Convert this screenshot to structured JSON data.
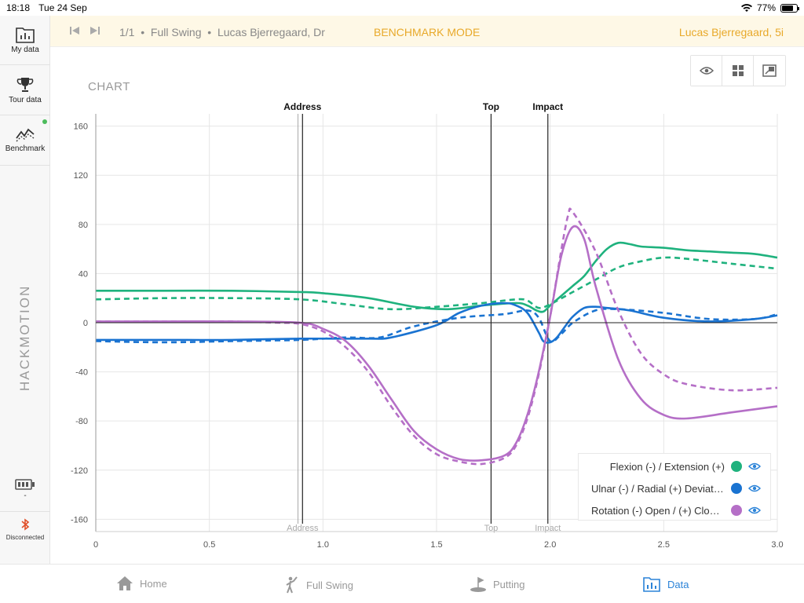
{
  "status": {
    "time": "18:18",
    "date": "Tue 24 Sep",
    "battery": "77%",
    "battery_level": 0.77
  },
  "sidebar": {
    "items": [
      {
        "label": "My data",
        "icon": "folder-chart-icon"
      },
      {
        "label": "Tour data",
        "icon": "trophy-icon"
      },
      {
        "label": "Benchmark",
        "icon": "benchmark-chart-icon"
      }
    ],
    "brand": "HACKMOTION",
    "battery_text": "-",
    "bluetooth_label": "Disconnected"
  },
  "topbar": {
    "counter": "1/1",
    "crumb": "1/1  •  Full Swing  •  Lucas Bjerregaard, Dr",
    "mode": "BENCHMARK MODE",
    "player": "Lucas Bjerregaard, 5i"
  },
  "chart_title": "CHART",
  "colors": {
    "flexion": "#1fb27e",
    "ulnar": "#1a73d1",
    "rotation": "#b56fc7",
    "accent": "#e8a92a",
    "active_tab": "#2b83d8"
  },
  "chart_data": {
    "type": "line",
    "xlim": [
      0,
      3.0
    ],
    "ylim": [
      -170,
      170
    ],
    "x_ticks": [
      0,
      0.5,
      1.0,
      1.5,
      2.0,
      2.5,
      3.0
    ],
    "x_tick_labels": [
      "0",
      "0.5",
      "1.0",
      "1.5",
      "2.0",
      "2.5",
      "3.0"
    ],
    "y_ticks": [
      160,
      120,
      80,
      40,
      0,
      -40,
      -80,
      -120,
      -160
    ],
    "grid": true,
    "legend_position": "bottom-right",
    "markers": [
      {
        "label": "Address",
        "x": 0.91,
        "bench_x": 0.89
      },
      {
        "label": "Top",
        "x": 1.74
      },
      {
        "label": "Impact",
        "x": 1.99
      }
    ],
    "series": [
      {
        "name": "Flexion (-) / Extension (+)",
        "color": "#1fb27e",
        "style": "solid",
        "x": [
          0,
          0.3,
          0.6,
          0.9,
          1.0,
          1.2,
          1.4,
          1.55,
          1.7,
          1.85,
          1.9,
          1.94,
          1.97,
          2.0,
          2.05,
          2.1,
          2.15,
          2.2,
          2.25,
          2.3,
          2.35,
          2.4,
          2.5,
          2.6,
          2.7,
          2.8,
          2.9,
          3.0
        ],
        "y": [
          26,
          26,
          26,
          25,
          24,
          20,
          13,
          11,
          14,
          16,
          14,
          10,
          9,
          14,
          22,
          30,
          38,
          50,
          60,
          65,
          64,
          62,
          61,
          59,
          58,
          57,
          56,
          53
        ]
      },
      {
        "name": "Flexion benchmark",
        "color": "#1fb27e",
        "style": "dashed",
        "x": [
          0,
          0.3,
          0.6,
          0.9,
          1.1,
          1.3,
          1.5,
          1.7,
          1.85,
          1.9,
          1.95,
          2.0,
          2.1,
          2.2,
          2.3,
          2.4,
          2.5,
          2.6,
          2.8,
          3.0
        ],
        "y": [
          19,
          20,
          20,
          19,
          15,
          11,
          13,
          16,
          19,
          18,
          12,
          15,
          25,
          35,
          45,
          50,
          53,
          52,
          48,
          44
        ]
      },
      {
        "name": "Ulnar (-) / Radial (+) Deviation",
        "color": "#1a73d1",
        "style": "solid",
        "x": [
          0,
          0.3,
          0.6,
          0.9,
          1.2,
          1.3,
          1.5,
          1.6,
          1.7,
          1.8,
          1.85,
          1.9,
          1.95,
          1.97,
          2.0,
          2.03,
          2.07,
          2.1,
          2.15,
          2.2,
          2.25,
          2.35,
          2.5,
          2.7,
          2.9,
          3.0
        ],
        "y": [
          -14,
          -14,
          -14,
          -13,
          -13,
          -12,
          -2,
          8,
          14,
          16,
          14,
          8,
          -8,
          -15,
          -16,
          -12,
          -2,
          5,
          12,
          13,
          12,
          10,
          4,
          1,
          3,
          6
        ]
      },
      {
        "name": "Ulnar benchmark",
        "color": "#1a73d1",
        "style": "dashed",
        "x": [
          0,
          0.3,
          0.6,
          0.9,
          1.1,
          1.25,
          1.4,
          1.6,
          1.8,
          1.9,
          1.95,
          2.0,
          2.05,
          2.1,
          2.2,
          2.3,
          2.5,
          2.7,
          2.9,
          3.0
        ],
        "y": [
          -15,
          -16,
          -15,
          -14,
          -12,
          -12,
          -3,
          4,
          7,
          10,
          4,
          -15,
          -9,
          0,
          10,
          11,
          8,
          3,
          3,
          7
        ]
      },
      {
        "name": "Rotation (-) Open / (+) Closed",
        "color": "#b56fc7",
        "style": "solid",
        "x": [
          0,
          0.3,
          0.6,
          0.9,
          1.0,
          1.1,
          1.2,
          1.3,
          1.4,
          1.5,
          1.6,
          1.7,
          1.8,
          1.85,
          1.9,
          1.95,
          2.0,
          2.05,
          2.1,
          2.15,
          2.2,
          2.3,
          2.4,
          2.5,
          2.6,
          2.8,
          3.0
        ],
        "y": [
          1,
          1,
          1,
          0,
          -5,
          -15,
          -35,
          -62,
          -88,
          -103,
          -111,
          -112,
          -108,
          -98,
          -75,
          -40,
          5,
          55,
          78,
          68,
          30,
          -30,
          -62,
          -75,
          -78,
          -73,
          -68
        ]
      },
      {
        "name": "Rotation benchmark",
        "color": "#b56fc7",
        "style": "dashed",
        "x": [
          0,
          0.3,
          0.6,
          0.8,
          0.9,
          1.0,
          1.1,
          1.2,
          1.3,
          1.4,
          1.5,
          1.6,
          1.7,
          1.8,
          1.85,
          1.9,
          1.95,
          2.0,
          2.05,
          2.08,
          2.1,
          2.2,
          2.3,
          2.4,
          2.5,
          2.6,
          2.8,
          3.0
        ],
        "y": [
          1,
          1,
          1,
          0,
          -1,
          -7,
          -20,
          -40,
          -68,
          -92,
          -107,
          -113,
          -115,
          -110,
          -100,
          -78,
          -42,
          5,
          60,
          88,
          90,
          58,
          10,
          -25,
          -42,
          -50,
          -55,
          -53
        ]
      }
    ]
  },
  "legend": [
    {
      "label": "Flexion (-) / Extension (+)",
      "color": "#1fb27e"
    },
    {
      "label": "Ulnar (-) / Radial (+) Deviation",
      "color": "#1a73d1"
    },
    {
      "label": "Rotation (-) Open / (+) Closed",
      "color": "#b56fc7"
    }
  ],
  "tabs": [
    {
      "label": "Home",
      "icon": "home-icon"
    },
    {
      "label": "Full Swing",
      "icon": "golfer-icon"
    },
    {
      "label": "Putting",
      "icon": "putting-icon"
    },
    {
      "label": "Data",
      "icon": "data-chart-icon",
      "active": true
    }
  ]
}
